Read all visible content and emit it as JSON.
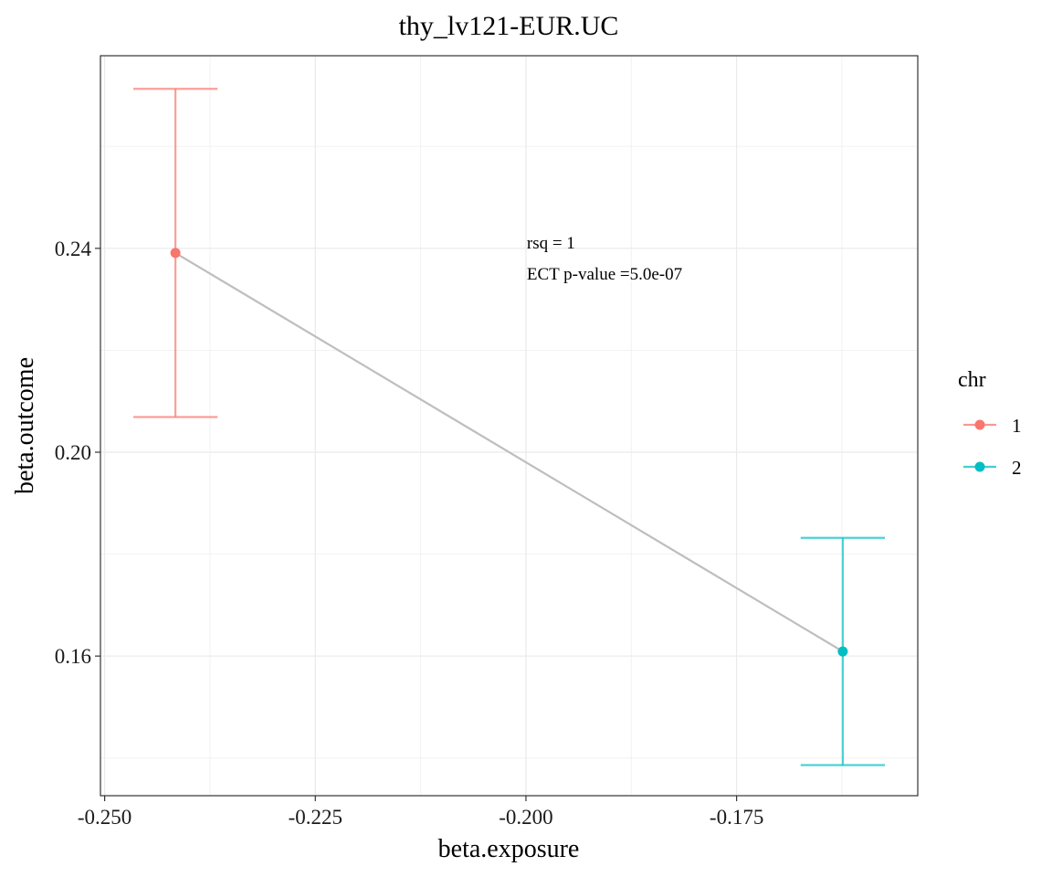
{
  "chart_data": {
    "type": "scatter",
    "title": "thy_lv121-EUR.UC",
    "xlabel": "beta.exposure",
    "ylabel": "beta.outcome",
    "xlim": [
      -0.2505,
      -0.1535
    ],
    "ylim": [
      0.1326,
      0.2778
    ],
    "x_ticks": [
      -0.25,
      -0.225,
      -0.2,
      -0.175
    ],
    "x_tick_labels": [
      "-0.250",
      "-0.225",
      "-0.200",
      "-0.175"
    ],
    "y_ticks": [
      0.16,
      0.2,
      0.24
    ],
    "y_tick_labels": [
      "0.16",
      "0.20",
      "0.24"
    ],
    "grid": true,
    "legend": {
      "title": "chr",
      "position": "right"
    },
    "series": [
      {
        "name": "1",
        "color": "#F8766D",
        "points": [
          {
            "x": -0.2416,
            "y": 0.2391,
            "ymin": 0.2069,
            "ymax": 0.2713,
            "xmin": -0.2466,
            "xmax": -0.2366
          }
        ]
      },
      {
        "name": "2",
        "color": "#00BFC4",
        "points": [
          {
            "x": -0.1624,
            "y": 0.1609,
            "ymin": 0.1386,
            "ymax": 0.1832,
            "xmin": -0.1674,
            "xmax": -0.1574
          }
        ]
      }
    ],
    "fit_line": {
      "color": "#BEBEBE",
      "points": [
        {
          "x": -0.2416,
          "y": 0.2391
        },
        {
          "x": -0.1624,
          "y": 0.1609
        }
      ]
    },
    "annotations": [
      "rsq =  1",
      "ECT p-value =5.0e-07"
    ],
    "annotation_anchor": {
      "x": -0.1999,
      "y": 0.2385
    }
  }
}
